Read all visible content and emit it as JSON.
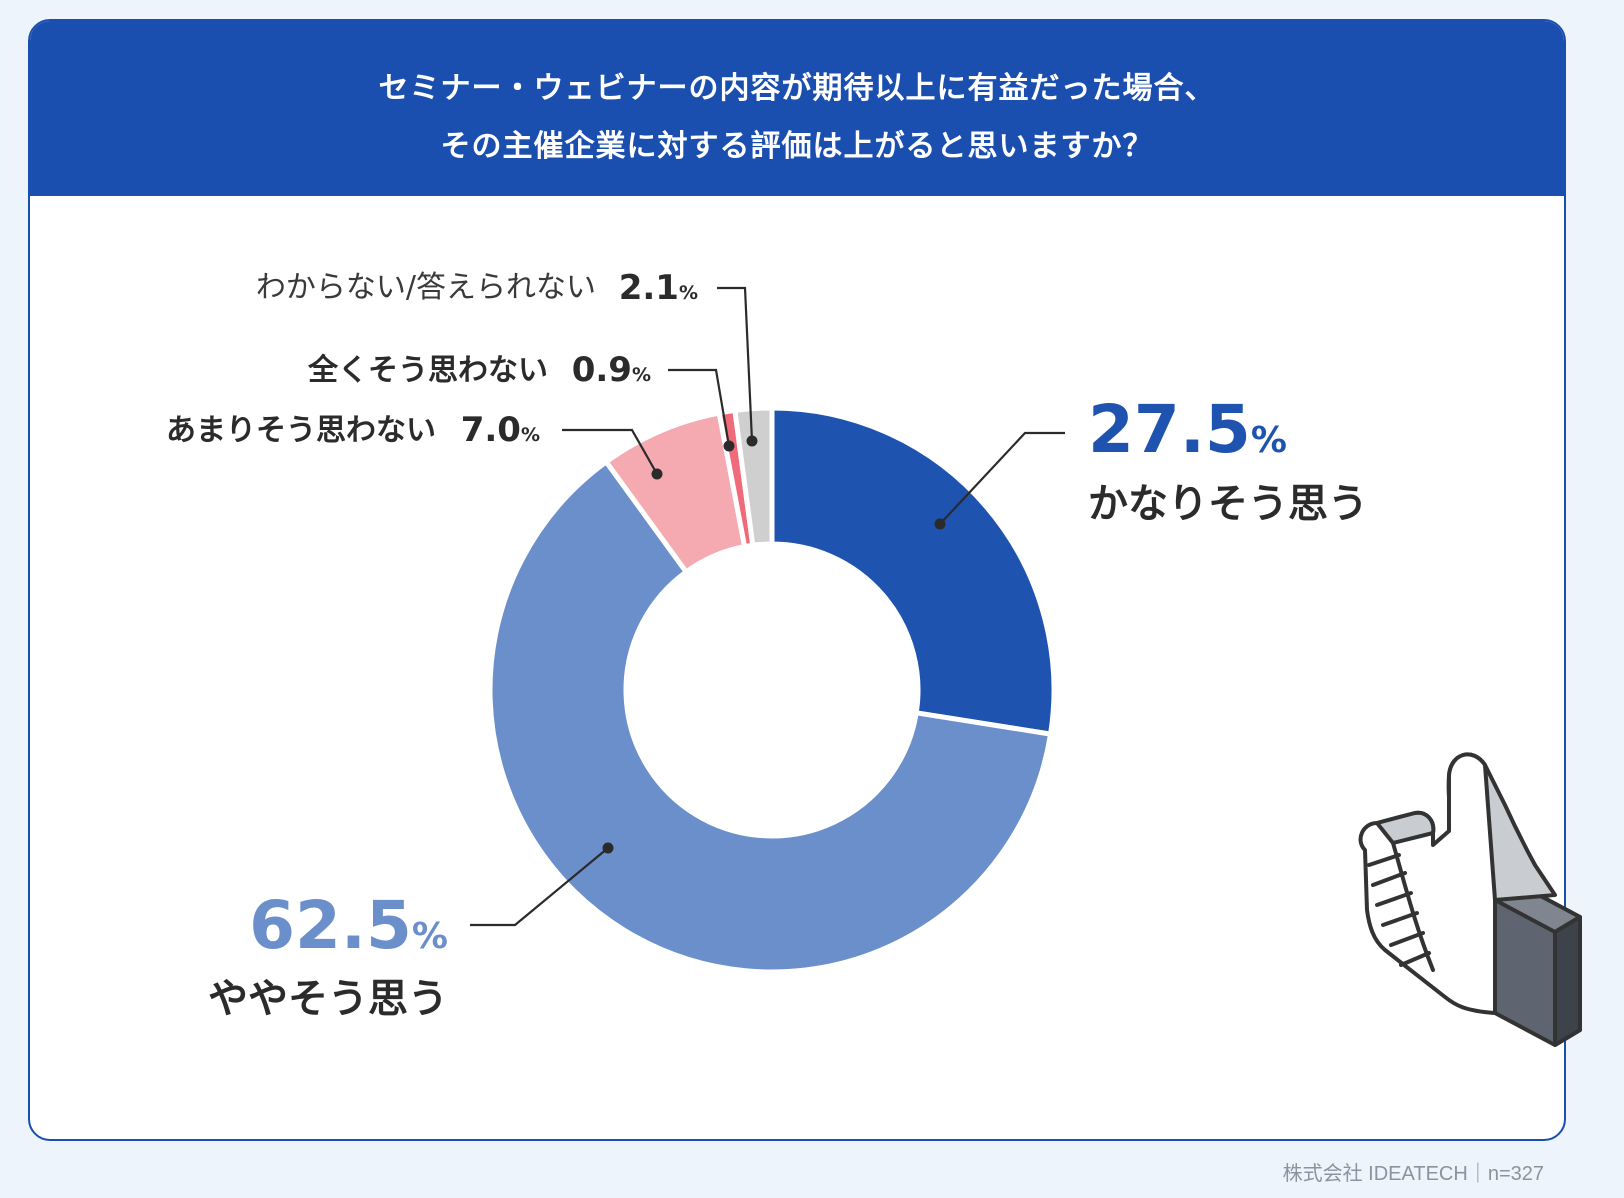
{
  "title": {
    "line1": "セミナー・ウェビナーの内容が期待以上に有益だった場合、",
    "line2": "その主催企業に対する評価は上がると思いますか？"
  },
  "chart_data": {
    "type": "pie",
    "variant": "donut",
    "slices": [
      {
        "label": "かなりそう思う",
        "value": 27.5,
        "display": "27.5",
        "color": "#1f53b0"
      },
      {
        "label": "ややそう思う",
        "value": 62.5,
        "display": "62.5",
        "color": "#6b8fcb"
      },
      {
        "label": "あまりそう思わない",
        "value": 7.0,
        "display": "7.0",
        "color": "#f5a9b0"
      },
      {
        "label": "全くそう思わない",
        "value": 0.9,
        "display": "0.9",
        "color": "#ef6b7a"
      },
      {
        "label": "わからない/答えられない",
        "value": 2.1,
        "display": "2.1",
        "color": "#cfcfcf"
      }
    ],
    "percent_sign": "%"
  },
  "footer": {
    "source": "株式会社 IDEATECH｜n=327"
  },
  "icons": {
    "illustration": "thumbs-up-icon"
  }
}
